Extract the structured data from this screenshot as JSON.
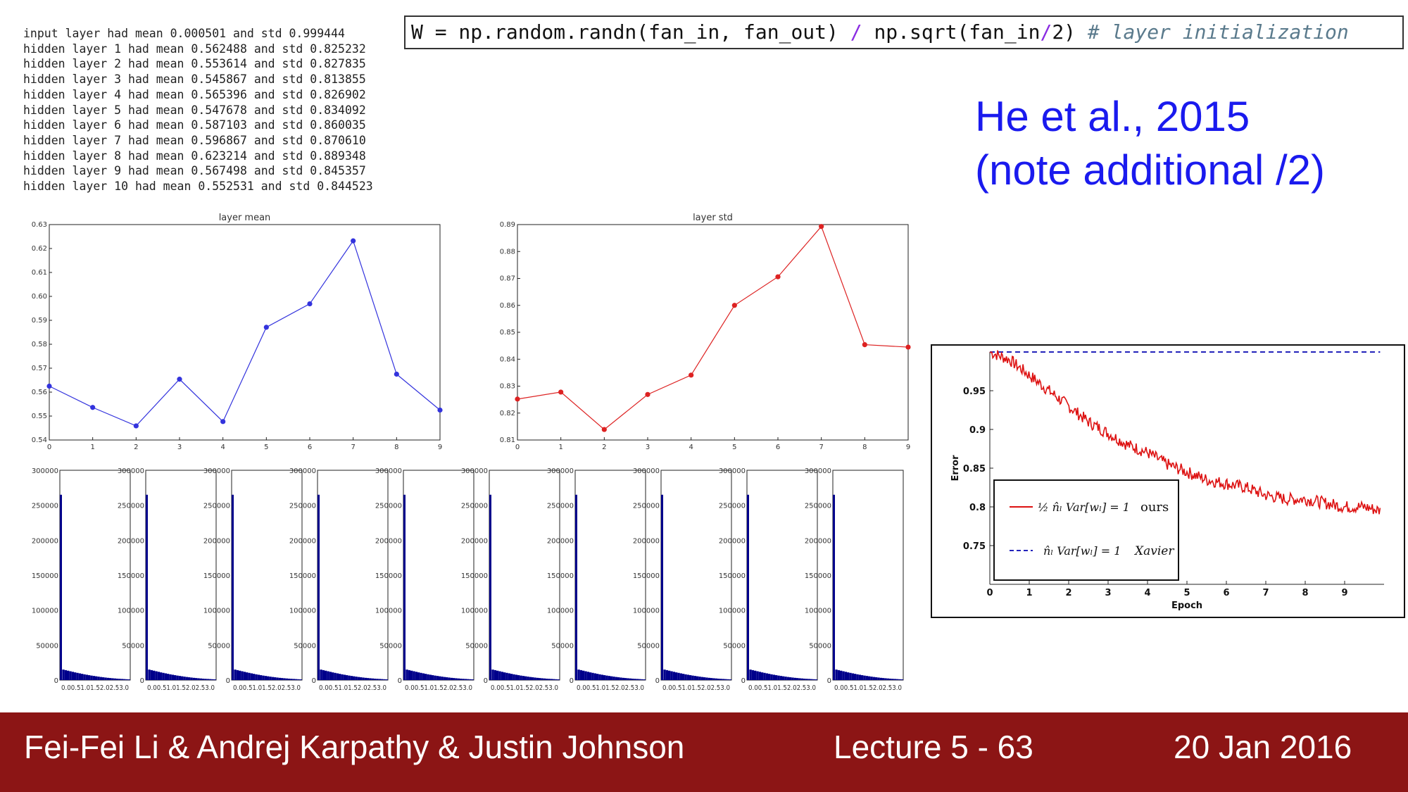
{
  "log_lines": [
    "input layer had mean 0.000501 and std 0.999444",
    "hidden layer 1 had mean 0.562488 and std 0.825232",
    "hidden layer 2 had mean 0.553614 and std 0.827835",
    "hidden layer 3 had mean 0.545867 and std 0.813855",
    "hidden layer 4 had mean 0.565396 and std 0.826902",
    "hidden layer 5 had mean 0.547678 and std 0.834092",
    "hidden layer 6 had mean 0.587103 and std 0.860035",
    "hidden layer 7 had mean 0.596867 and std 0.870610",
    "hidden layer 8 had mean 0.623214 and std 0.889348",
    "hidden layer 9 had mean 0.567498 and std 0.845357",
    "hidden layer 10 had mean 0.552531 and std 0.844523"
  ],
  "code": {
    "part1": "W = np.random.randn(fan_in, fan_out) ",
    "op1": "/",
    "part2": " np.sqrt(fan_in",
    "op2": "/",
    "part3": "2) ",
    "comment": "# layer initialization"
  },
  "citation": {
    "line1": "He et al., 2015",
    "line2": "(note additional /2)"
  },
  "footer": {
    "authors": "Fei-Fei Li & Andrej Karpathy & Justin Johnson",
    "lecture": "Lecture 5 - 63",
    "date": "20 Jan 2016"
  },
  "colors": {
    "mean_line": "#3333dd",
    "std_line": "#dd2222",
    "hist_bar": "#00008b",
    "ours_line": "#dd1111",
    "xavier_line": "#2222bb",
    "footer_bg": "#8c1515",
    "citation": "#1a1aee"
  },
  "chart_data": [
    {
      "type": "line",
      "title": "layer mean",
      "x": [
        0,
        1,
        2,
        3,
        4,
        5,
        6,
        7,
        8,
        9
      ],
      "xticks": [
        "0",
        "1",
        "2",
        "3",
        "4",
        "5",
        "6",
        "7",
        "8",
        "9"
      ],
      "values": [
        0.5625,
        0.5536,
        0.5459,
        0.5654,
        0.5477,
        0.5871,
        0.5969,
        0.6232,
        0.5675,
        0.5525
      ],
      "yticks": [
        "0.54",
        "0.55",
        "0.56",
        "0.57",
        "0.58",
        "0.59",
        "0.60",
        "0.61",
        "0.62",
        "0.63"
      ],
      "xlim": [
        0,
        9
      ],
      "ylim": [
        0.54,
        0.63
      ]
    },
    {
      "type": "line",
      "title": "layer std",
      "x": [
        0,
        1,
        2,
        3,
        4,
        5,
        6,
        7,
        8,
        9
      ],
      "xticks": [
        "0",
        "1",
        "2",
        "3",
        "4",
        "5",
        "6",
        "7",
        "8",
        "9"
      ],
      "values": [
        0.8252,
        0.8278,
        0.8139,
        0.8269,
        0.8341,
        0.86,
        0.8706,
        0.8893,
        0.8454,
        0.8445
      ],
      "yticks": [
        "0.81",
        "0.82",
        "0.83",
        "0.84",
        "0.85",
        "0.86",
        "0.87",
        "0.88",
        "0.89"
      ],
      "xlim": [
        0,
        9
      ],
      "ylim": [
        0.81,
        0.89
      ]
    },
    {
      "type": "bar",
      "panels": 10,
      "yticks": [
        "0",
        "50000",
        "100000",
        "150000",
        "200000",
        "250000",
        "300000"
      ],
      "xtick_text": "0.00.51.01.52.02.53.0",
      "ylim": [
        0,
        300000
      ],
      "xlim": [
        0,
        3.0
      ],
      "bins": [
        0.0,
        0.1,
        0.2,
        0.3,
        0.4,
        0.5,
        0.6,
        0.7,
        0.8,
        0.9,
        1.0,
        1.1,
        1.2,
        1.3,
        1.4,
        1.5,
        1.6,
        1.7,
        1.8,
        1.9,
        2.0,
        2.1,
        2.2,
        2.3,
        2.4,
        2.5,
        2.6,
        2.7,
        2.8,
        2.9
      ],
      "values": [
        265000,
        15000,
        14200,
        13400,
        12600,
        11800,
        11000,
        10300,
        9600,
        8900,
        8200,
        7600,
        7000,
        6400,
        5900,
        5400,
        4900,
        4400,
        4000,
        3600,
        3200,
        2900,
        2600,
        2300,
        2000,
        1800,
        1600,
        1400,
        1200,
        1000
      ]
    },
    {
      "type": "line",
      "xlabel": "Epoch",
      "ylabel": "Error",
      "xticks": [
        "0",
        "1",
        "2",
        "3",
        "4",
        "5",
        "6",
        "7",
        "8",
        "9"
      ],
      "yticks": [
        "0.75",
        "0.8",
        "0.85",
        "0.9",
        "0.95"
      ],
      "xlim": [
        0,
        10
      ],
      "ylim": [
        0.7,
        1.0
      ],
      "legend": "bottom-left",
      "series": [
        {
          "name": "ours",
          "legend_label": "½ n̂ₗ Var[wₗ] = 1",
          "x": [
            0,
            0.5,
            1,
            1.5,
            2,
            2.5,
            3,
            3.5,
            4,
            4.5,
            5,
            5.5,
            6,
            6.5,
            7,
            7.5,
            8,
            8.5,
            9,
            9.5,
            9.9
          ],
          "values": [
            1.0,
            0.99,
            0.97,
            0.95,
            0.93,
            0.91,
            0.895,
            0.88,
            0.87,
            0.855,
            0.845,
            0.835,
            0.83,
            0.825,
            0.815,
            0.81,
            0.81,
            0.805,
            0.8,
            0.8,
            0.795
          ]
        },
        {
          "name": "Xavier",
          "legend_label": "n̂ₗ Var[wₗ] = 1",
          "x": [
            0,
            9.9
          ],
          "values": [
            1.0,
            1.0
          ]
        }
      ]
    }
  ]
}
